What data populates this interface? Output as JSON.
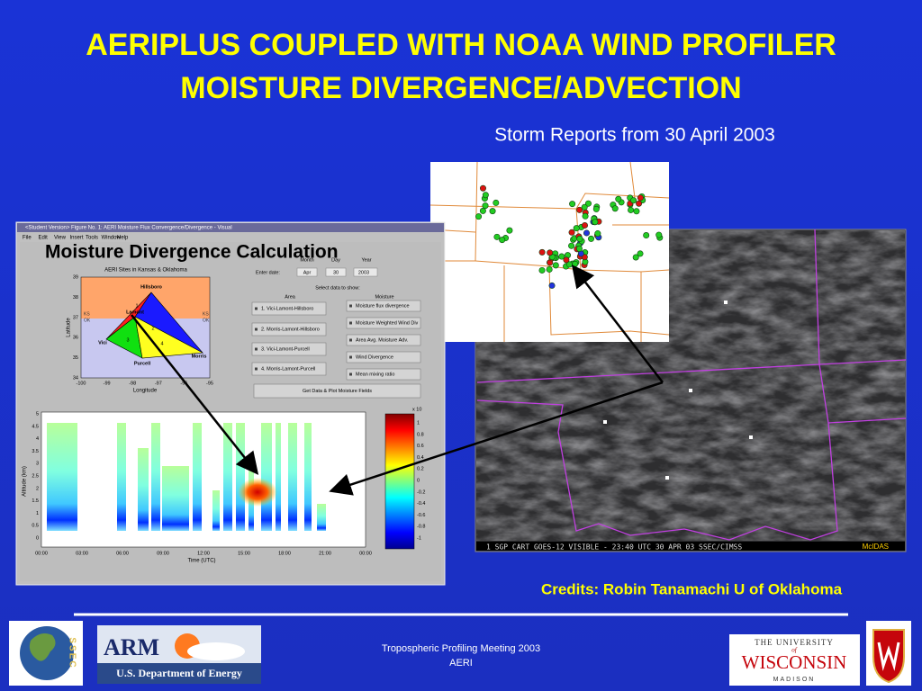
{
  "title": {
    "line1": "AERIPLUS COUPLED WITH NOAA WIND PROFILER",
    "line2": "MOISTURE DIVERGENCE/ADVECTION"
  },
  "storm_map": {
    "caption": "Storm Reports from 30 April 2003"
  },
  "matlab_window": {
    "title_bar": "<Student Version> Figure No. 1: AERI Moisture Flux Convergence/Divergence - Visual",
    "menu": [
      "File",
      "Edit",
      "View",
      "Insert",
      "Tools",
      "Window",
      "Help"
    ],
    "overlay_label": "Moisture Divergence Calculation",
    "site_plot": {
      "title": "AERI Sites in Kansas & Oklahoma",
      "x_label": "Longitude",
      "y_label": "Latitude",
      "x_ticks": [
        "-100",
        "-99",
        "-98",
        "-97",
        "-96",
        "-95"
      ],
      "y_ticks": [
        "39",
        "38",
        "37",
        "36",
        "35",
        "34"
      ],
      "sites": [
        "Hillsboro",
        "Vici",
        "Lamont",
        "Purcell",
        "Morris"
      ],
      "areas": [
        "1",
        "2",
        "3",
        "4"
      ],
      "state_labels": [
        "KS",
        "OK",
        "KS",
        "OK"
      ]
    },
    "controls": {
      "date_label": "Enter date:",
      "month_label": "Month",
      "day_label": "Day",
      "year_label": "Year",
      "month": "Apr",
      "day": "30",
      "year": "2003",
      "select_label": "Select data to show:",
      "area_header": "Area",
      "moisture_header": "Moisture",
      "area_options": [
        "1. Vici-Lamont-Hillsboro",
        "2. Morris-Lamont-Hillsboro",
        "3. Vici-Lamont-Purcell",
        "4. Morris-Lamont-Purcell"
      ],
      "moisture_options": [
        "Moisture flux divergence",
        "Moisture Weighted Wind Div",
        "Area Avg. Moisture Adv.",
        "Wind Divergence",
        "Mean mixing ratio"
      ],
      "plot_button": "Get Data & Plot Moisture Fields"
    },
    "profile_plot": {
      "y_label": "Altitude (km)",
      "x_label": "Time (UTC)",
      "y_ticks": [
        "5",
        "4.5",
        "4",
        "3.5",
        "3",
        "2.5",
        "2",
        "1.5",
        "1",
        "0.5",
        "0"
      ],
      "x_ticks": [
        "00:00",
        "03:00",
        "06:00",
        "09:00",
        "12:00",
        "15:00",
        "18:00",
        "21:00",
        "00:00"
      ],
      "colorbar_exponent": "x 10",
      "colorbar_ticks": [
        "1",
        "0.8",
        "0.6",
        "0.4",
        "0.2",
        "0",
        "-0.2",
        "-0.4",
        "-0.6",
        "-0.8",
        "-1"
      ]
    }
  },
  "satellite": {
    "caption": "1   SGP CART GOES-12 VISIBLE - 23:40 UTC 30 APR 03 SSEC/CIMSS",
    "brand": "McIDAS"
  },
  "credits": "Credits:  Robin Tanamachi U of Oklahoma",
  "footer": {
    "line1": "Tropospheric Profiling Meeting 2003",
    "line2": "AERI"
  },
  "logos": {
    "ssec": "SSEC",
    "arm": "ARM",
    "doe": "U.S. Department of Energy",
    "uw_top": "THE UNIVERSITY",
    "uw_of": "of",
    "uw_main": "WISCONSIN",
    "uw_bottom": "MADISON"
  }
}
